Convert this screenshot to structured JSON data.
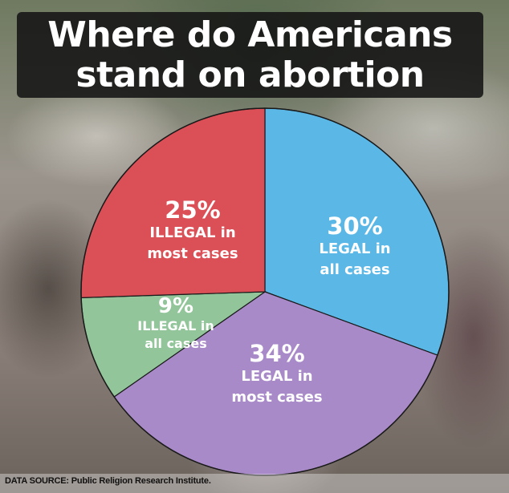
{
  "title": "Where do Americans\nstand on  abortion",
  "source": "DATA SOURCE: Public Religion Research Institute.",
  "chart_data": {
    "type": "pie",
    "slices": [
      {
        "percent_label": "30%",
        "label_lines": [
          "LEGAL in",
          "all cases"
        ],
        "value": 30,
        "color": "#5bb7e6"
      },
      {
        "percent_label": "34%",
        "label_lines": [
          "LEGAL in",
          "most cases"
        ],
        "value": 34,
        "color": "#a98ac8"
      },
      {
        "percent_label": "9%",
        "label_lines": [
          "ILLEGAL in",
          "all cases"
        ],
        "value": 9,
        "color": "#92c59a"
      },
      {
        "percent_label": "25%",
        "label_lines": [
          "ILLEGAL in",
          "most cases"
        ],
        "value": 25,
        "color": "#db5057"
      }
    ]
  }
}
